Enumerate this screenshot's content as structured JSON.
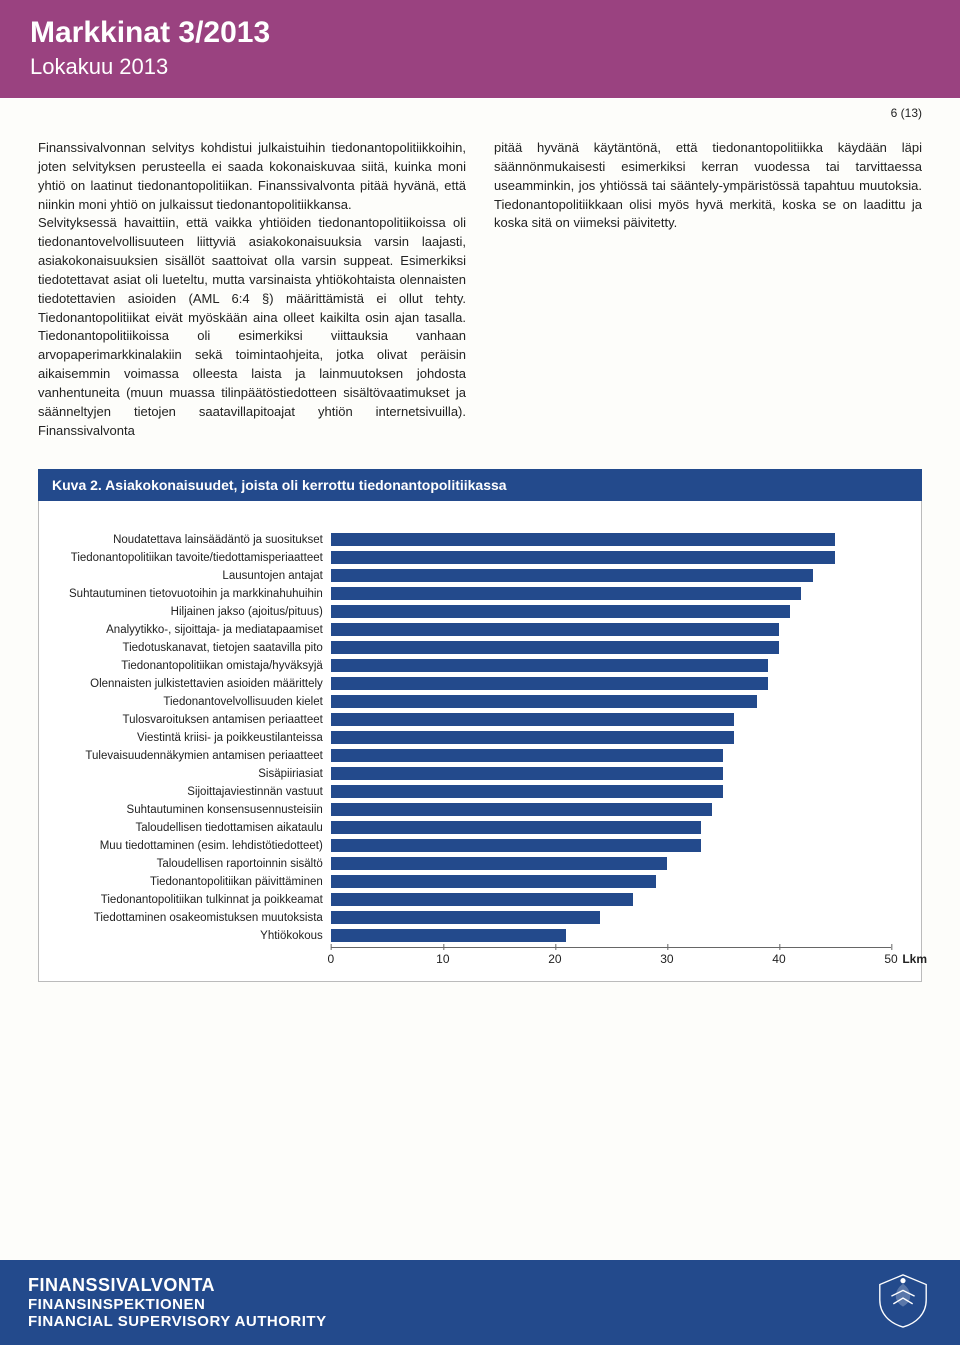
{
  "header": {
    "title": "Markkinat 3/2013",
    "subtitle": "Lokakuu 2013"
  },
  "pagecount": "6 (13)",
  "columns": {
    "left": "Finanssivalvonnan selvitys kohdistui julkaistuihin tiedonantopolitiikkoihin, joten selvityksen perusteella ei saada kokonaiskuvaa siitä, kuinka moni yhtiö on laatinut tiedonantopolitiikan. Finanssivalvonta pitää hyvänä, että niinkin moni yhtiö on julkaissut tiedonantopolitiikkansa.\nSelvityksessä havaittiin, että vaikka yhtiöiden tiedonantopolitiikoissa oli tiedonantovelvollisuuteen liittyviä asiakokonaisuuksia varsin laajasti, asiakokonaisuuksien sisällöt saattoivat olla varsin suppeat. Esimerkiksi tiedotettavat asiat oli lueteltu, mutta varsinaista yhtiökohtaista olennaisten tiedotettavien asioiden (AML 6:4 §) määrittämistä ei ollut tehty. Tiedonantopolitiikat eivät myöskään aina olleet kaikilta osin ajan tasalla. Tiedonantopolitiikoissa oli esimerkiksi viittauksia vanhaan arvopaperimarkkinalakiin sekä toimintaohjeita, jotka olivat peräisin aikaisemmin voimassa olleesta laista ja lainmuutoksen johdosta vanhentuneita (muun muassa tilinpäätöstiedotteen sisältövaatimukset ja säänneltyjen tietojen saatavillapitoajat yhtiön internetsivuilla). Finanssivalvonta",
    "right": "pitää hyvänä käytäntönä, että tiedonantopolitiikka käydään läpi säännönmukaisesti esimerkiksi kerran vuodessa tai tarvittaessa useamminkin, jos yhtiössä tai sääntely-ympäristössä tapahtuu muutoksia. Tiedonantopolitiikkaan olisi myös hyvä merkitä, koska se on laadittu ja koska sitä on viimeksi päivitetty."
  },
  "figure": {
    "title": "Kuva 2. Asiakokonaisuudet, joista oli kerrottu tiedonantopolitiikassa",
    "type": "bar",
    "bar_color": "#234a8c",
    "background_color": "#ffffff",
    "axis_color": "#666666",
    "label_fontsize": 11.5,
    "xmax": 50,
    "xticks": [
      0,
      10,
      20,
      30,
      40,
      50
    ],
    "xunit": "Lkm",
    "categories": [
      "Noudatettava lainsäädäntö ja suositukset",
      "Tiedonantopolitiikan tavoite/tiedottamisperiaatteet",
      "Lausuntojen antajat",
      "Suhtautuminen tietovuotoihin ja markkinahuhuihin",
      "Hiljainen jakso (ajoitus/pituus)",
      "Analyytikko-, sijoittaja- ja mediatapaamiset",
      "Tiedotuskanavat, tietojen saatavilla pito",
      "Tiedonantopolitiikan omistaja/hyväksyjä",
      "Olennaisten julkistettavien asioiden määrittely",
      "Tiedonantovelvollisuuden kielet",
      "Tulosvaroituksen antamisen periaatteet",
      "Viestintä kriisi- ja poikkeustilanteissa",
      "Tulevaisuudennäkymien antamisen periaatteet",
      "Sisäpiiriasiat",
      "Sijoittajaviestinnän vastuut",
      "Suhtautuminen konsensusennusteisiin",
      "Taloudellisen tiedottamisen aikataulu",
      "Muu tiedottaminen (esim. lehdistötiedotteet)",
      "Taloudellisen raportoinnin sisältö",
      "Tiedonantopolitiikan päivittäminen",
      "Tiedonantopolitiikan tulkinnat ja poikkeamat",
      "Tiedottaminen osakeomistuksen muutoksista",
      "Yhtiökokous"
    ],
    "values": [
      45,
      45,
      43,
      42,
      41,
      40,
      40,
      39,
      39,
      38,
      36,
      36,
      35,
      35,
      35,
      34,
      33,
      33,
      30,
      29,
      27,
      24,
      21
    ]
  },
  "footer": {
    "line1": "FINANSSIVALVONTA",
    "line2": "FINANSINSPEKTIONEN",
    "line3": "FINANCIAL SUPERVISORY AUTHORITY"
  }
}
